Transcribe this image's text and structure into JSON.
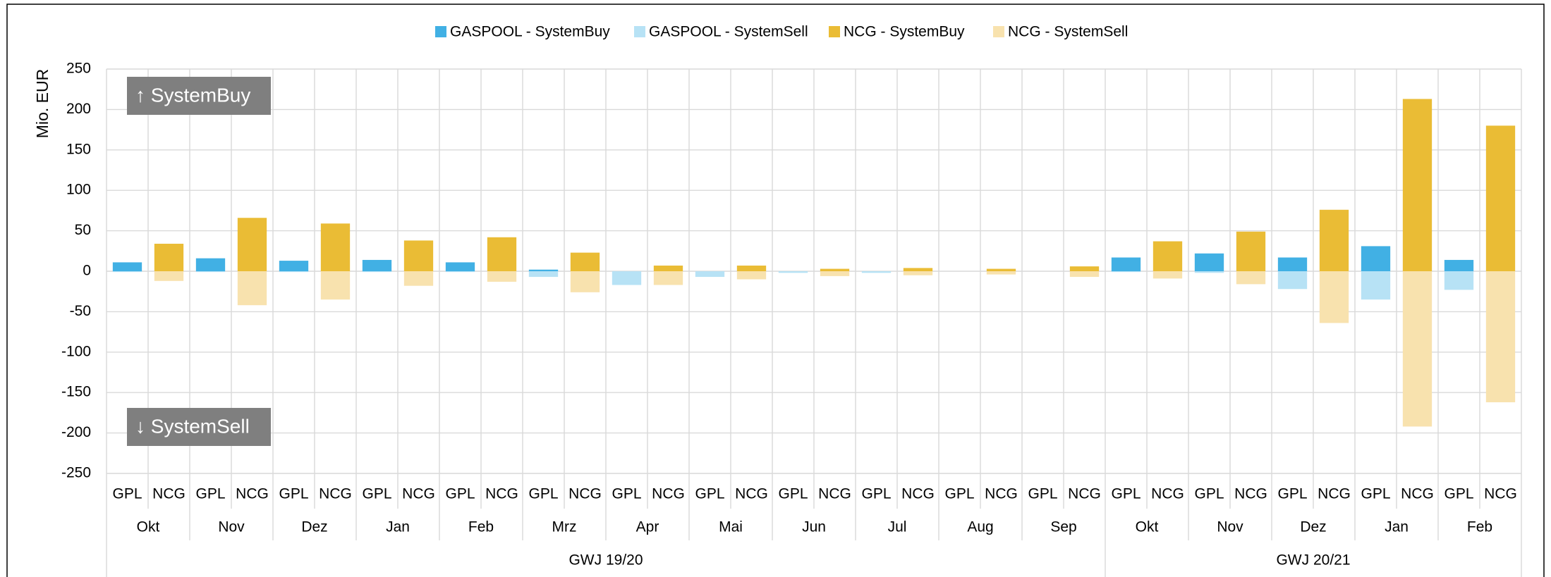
{
  "chart_data": {
    "type": "bar",
    "stacked": true,
    "y_label": "Mio. EUR",
    "annotations": [
      "↑ SystemBuy",
      "↓ SystemSell"
    ],
    "categories": [
      "GPL",
      "NCG",
      "GPL",
      "NCG",
      "GPL",
      "NCG",
      "GPL",
      "NCG",
      "GPL",
      "NCG",
      "GPL",
      "NCG",
      "GPL",
      "NCG",
      "GPL",
      "NCG",
      "GPL",
      "NCG",
      "GPL",
      "NCG",
      "GPL",
      "NCG",
      "GPL",
      "NCG",
      "GPL",
      "NCG",
      "GPL",
      "NCG",
      "GPL",
      "NCG",
      "GPL",
      "NCG",
      "GPL",
      "NCG"
    ],
    "category_groups": [
      {
        "label": "GWJ 19/20",
        "months": [
          "Okt",
          "Nov",
          "Dez",
          "Jan",
          "Feb",
          "Mrz",
          "Apr",
          "Mai",
          "Jun",
          "Jul",
          "Aug",
          "Sep"
        ]
      },
      {
        "label": "GWJ 20/21",
        "months": [
          "Okt",
          "Nov",
          "Dez",
          "Jan",
          "Feb"
        ]
      }
    ],
    "series": [
      {
        "name": "GASPOOL - SystemBuy",
        "color": "#41b0e4",
        "values": [
          11,
          null,
          16,
          null,
          13,
          null,
          14,
          null,
          11,
          null,
          2,
          null,
          0,
          null,
          0,
          null,
          0,
          null,
          0,
          null,
          0,
          null,
          0,
          null,
          17,
          null,
          22,
          null,
          17,
          null,
          31,
          null,
          14,
          null
        ]
      },
      {
        "name": "GASPOOL - SystemSell",
        "color": "#b7e2f5",
        "values": [
          -1,
          null,
          -1,
          null,
          -1,
          null,
          -1,
          null,
          -1,
          null,
          -7,
          null,
          -17,
          null,
          -7,
          null,
          -2,
          null,
          -2,
          null,
          0,
          null,
          0,
          null,
          -1,
          null,
          -2,
          null,
          -22,
          null,
          -35,
          null,
          -23,
          null
        ]
      },
      {
        "name": "NCG - SystemBuy",
        "color": "#eabc35",
        "values": [
          null,
          34,
          null,
          66,
          null,
          59,
          null,
          38,
          null,
          42,
          null,
          23,
          null,
          7,
          null,
          7,
          null,
          3,
          null,
          4,
          null,
          3,
          null,
          6,
          null,
          37,
          null,
          49,
          null,
          76,
          null,
          213,
          null,
          180
        ]
      },
      {
        "name": "NCG - SystemSell",
        "color": "#f8e2ae",
        "values": [
          null,
          -12,
          null,
          -42,
          null,
          -35,
          null,
          -18,
          null,
          -13,
          null,
          -26,
          null,
          -17,
          null,
          -10,
          null,
          -6,
          null,
          -5,
          null,
          -4,
          null,
          -7,
          null,
          -9,
          null,
          -16,
          null,
          -64,
          null,
          -192,
          null,
          -162
        ]
      }
    ],
    "ylim": [
      -250,
      250
    ],
    "yticks": [
      -250,
      -200,
      -150,
      -100,
      -50,
      0,
      50,
      100,
      150,
      200,
      250
    ],
    "grid": true,
    "legend": "top"
  }
}
